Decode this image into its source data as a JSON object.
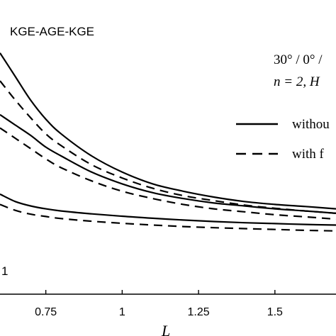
{
  "chart_data": {
    "type": "line",
    "title": "KGE-AGE-KGE",
    "xlabel": "L",
    "ylabel": "",
    "xlim": [
      0.6,
      1.7
    ],
    "ylim": [
      0,
      1
    ],
    "grid": false,
    "x_ticks": [
      "0.75",
      "1",
      "1.25",
      "1.5"
    ],
    "x_tick_values": [
      0.75,
      1,
      1.25,
      1.5
    ],
    "annotations": {
      "layup": "30° / 0° /",
      "params": "n = 2,  H",
      "curve_label": "1"
    },
    "legend": {
      "placement": "top-right",
      "entries": [
        {
          "label": "withou",
          "style": "solid"
        },
        {
          "label": "with f",
          "style": "dashed"
        }
      ]
    },
    "series": [
      {
        "style": "solid",
        "x": [
          0.6,
          0.65,
          0.7,
          0.75,
          0.8,
          0.9,
          1.0,
          1.1,
          1.2,
          1.3,
          1.4,
          1.5,
          1.6,
          1.7
        ],
        "y": [
          0.82,
          0.74,
          0.66,
          0.595,
          0.545,
          0.47,
          0.415,
          0.375,
          0.35,
          0.33,
          0.315,
          0.305,
          0.298,
          0.29
        ]
      },
      {
        "style": "dashed",
        "x": [
          0.6,
          0.65,
          0.7,
          0.75,
          0.8,
          0.9,
          1.0,
          1.1,
          1.2,
          1.3,
          1.4,
          1.5,
          1.6,
          1.7
        ],
        "y": [
          0.725,
          0.66,
          0.6,
          0.545,
          0.505,
          0.44,
          0.395,
          0.36,
          0.335,
          0.318,
          0.303,
          0.292,
          0.283,
          0.275
        ]
      },
      {
        "style": "solid",
        "x": [
          0.6,
          0.65,
          0.7,
          0.75,
          0.8,
          0.9,
          1.0,
          1.1,
          1.2,
          1.3,
          1.4,
          1.5,
          1.6,
          1.7
        ],
        "y": [
          0.61,
          0.575,
          0.54,
          0.5,
          0.47,
          0.415,
          0.375,
          0.345,
          0.325,
          0.31,
          0.3,
          0.29,
          0.283,
          0.275
        ]
      },
      {
        "style": "dashed",
        "x": [
          0.6,
          0.65,
          0.7,
          0.75,
          0.8,
          0.9,
          1.0,
          1.1,
          1.2,
          1.3,
          1.4,
          1.5,
          1.6,
          1.7
        ],
        "y": [
          0.565,
          0.53,
          0.495,
          0.46,
          0.43,
          0.385,
          0.35,
          0.325,
          0.305,
          0.29,
          0.28,
          0.27,
          0.263,
          0.255
        ]
      },
      {
        "style": "solid",
        "x": [
          0.6,
          0.65,
          0.7,
          0.75,
          0.8,
          0.9,
          1.0,
          1.1,
          1.2,
          1.3,
          1.4,
          1.5,
          1.6,
          1.7
        ],
        "y": [
          0.34,
          0.315,
          0.3,
          0.29,
          0.283,
          0.273,
          0.265,
          0.258,
          0.252,
          0.247,
          0.243,
          0.24,
          0.237,
          0.235
        ]
      },
      {
        "style": "dashed",
        "x": [
          0.6,
          0.65,
          0.7,
          0.75,
          0.8,
          0.9,
          1.0,
          1.1,
          1.2,
          1.3,
          1.4,
          1.5,
          1.6,
          1.7
        ],
        "y": [
          0.305,
          0.285,
          0.272,
          0.264,
          0.257,
          0.248,
          0.241,
          0.235,
          0.23,
          0.226,
          0.223,
          0.22,
          0.217,
          0.215
        ]
      }
    ]
  }
}
